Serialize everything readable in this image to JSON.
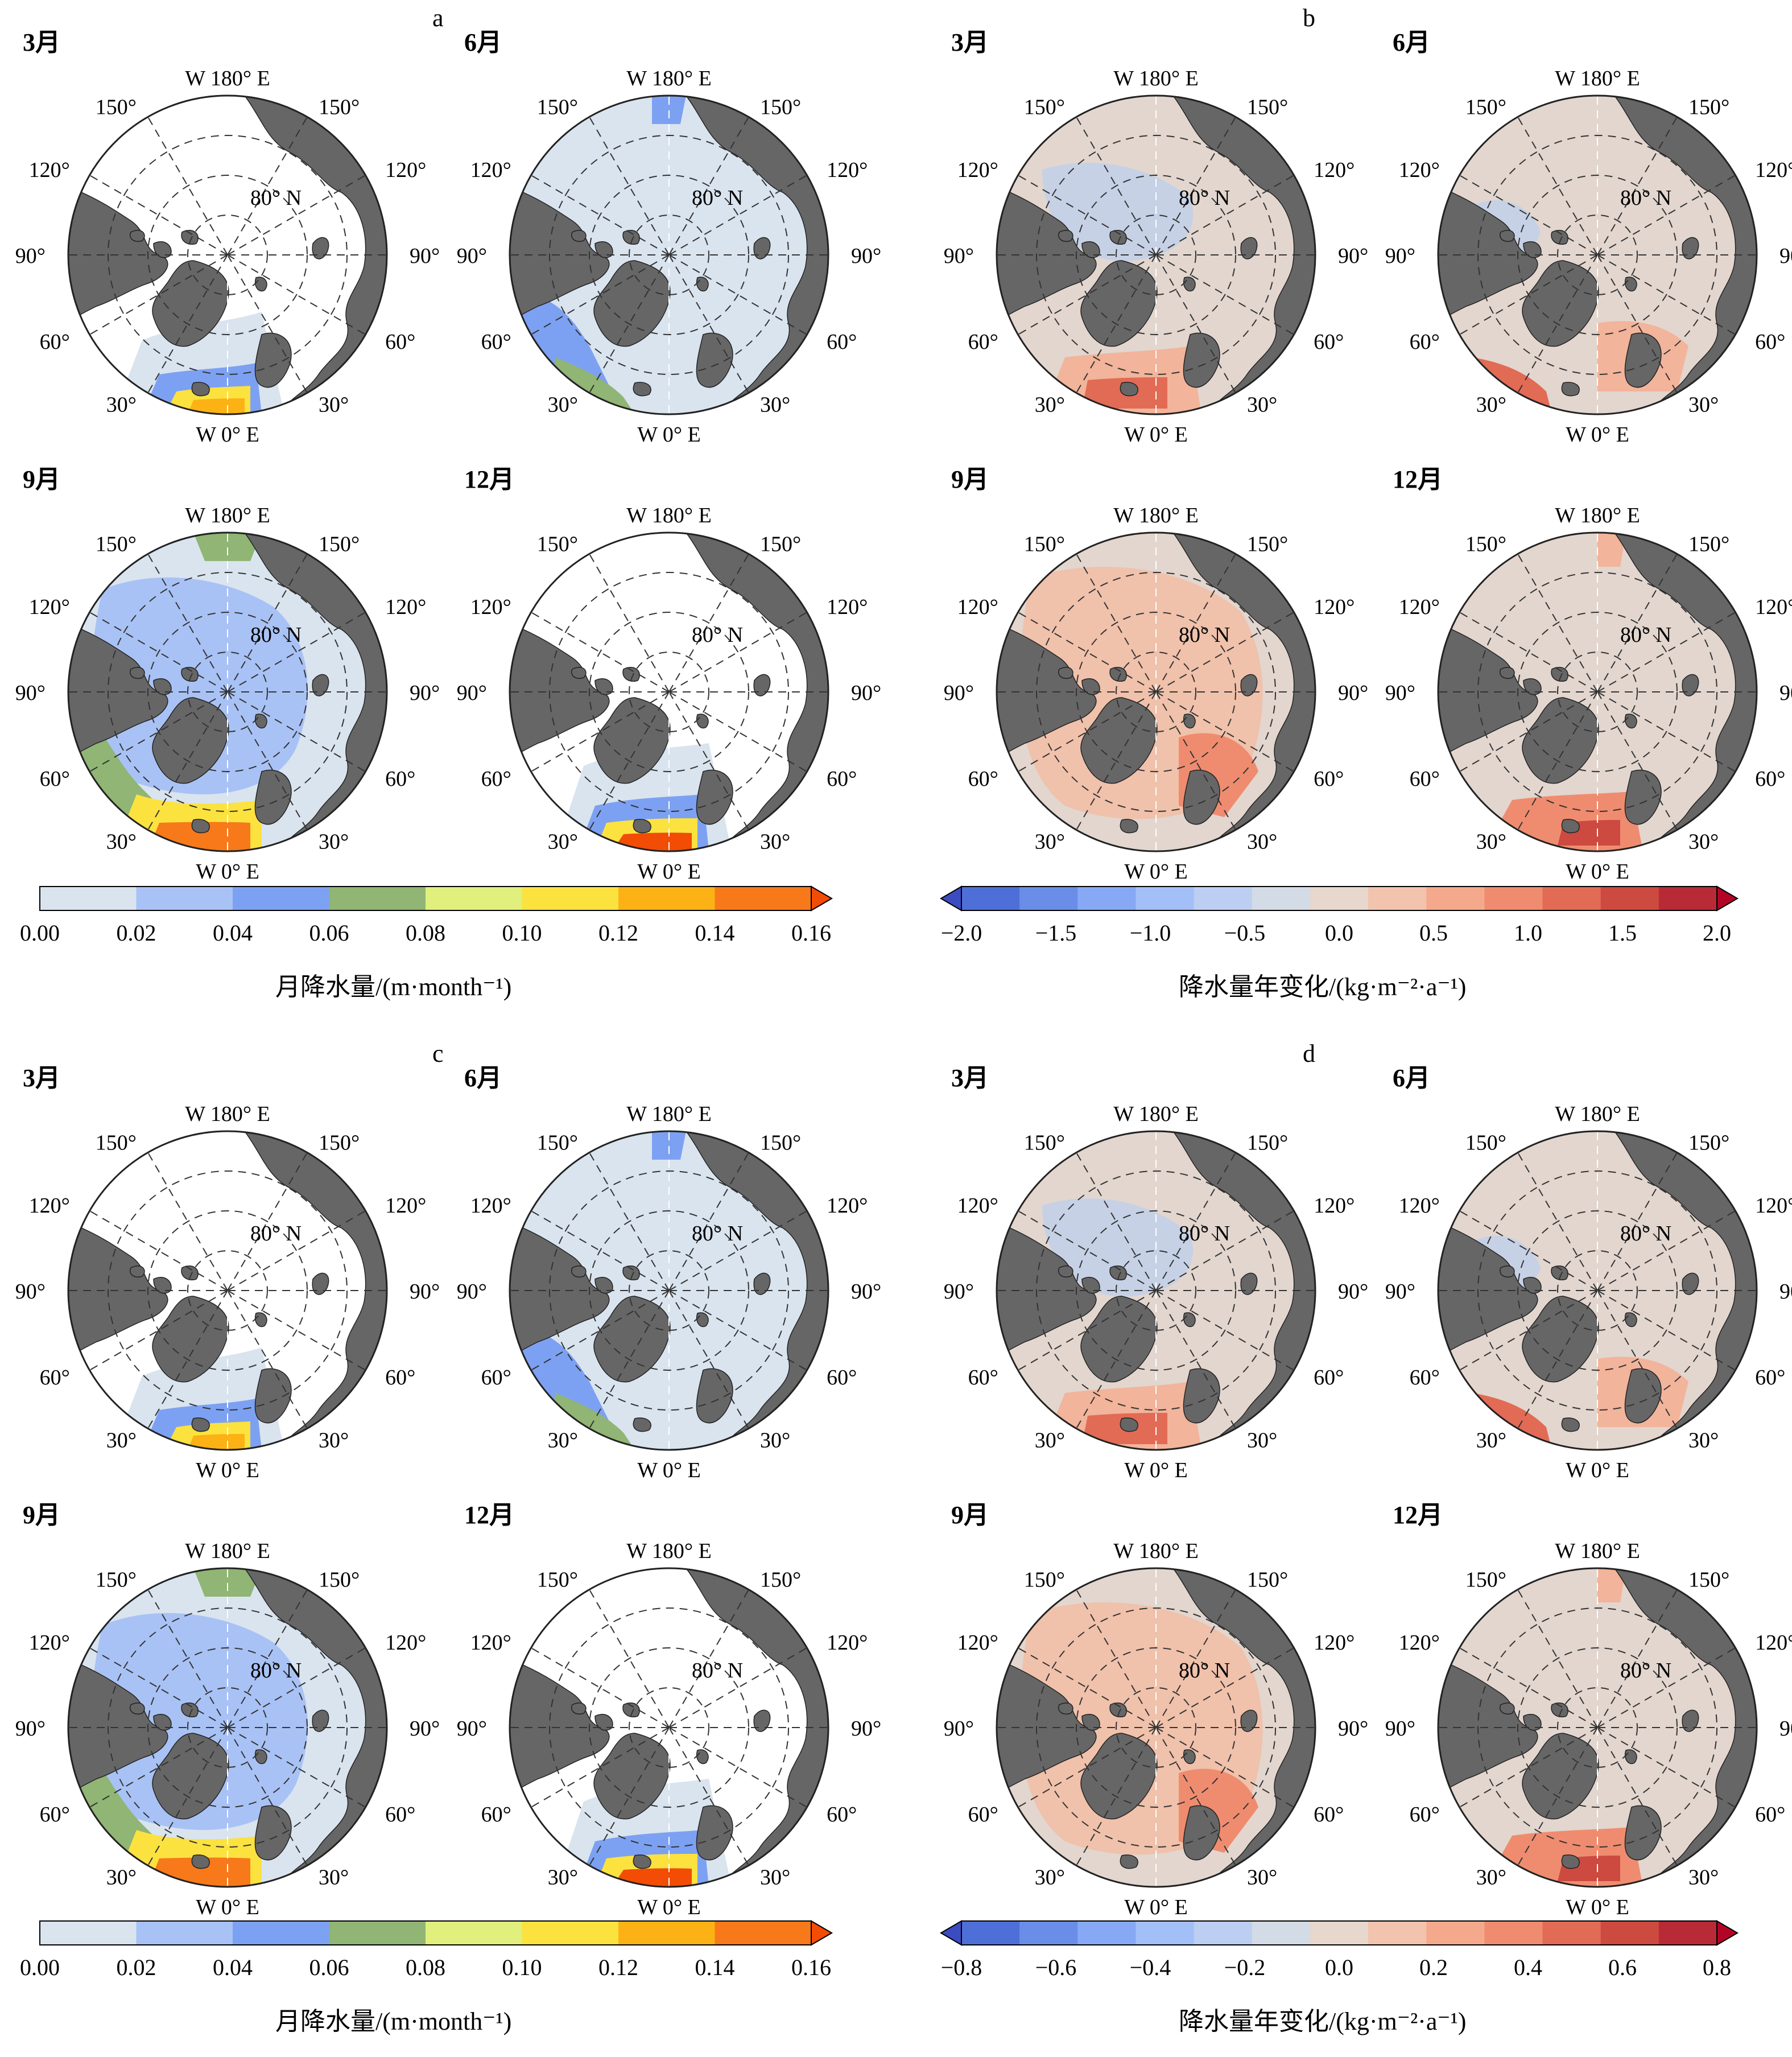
{
  "panels": [
    {
      "letter": "a",
      "maps": [
        {
          "month": "3月",
          "style": "precip-mar"
        },
        {
          "month": "6月",
          "style": "precip-jun"
        },
        {
          "month": "9月",
          "style": "precip-sep"
        },
        {
          "month": "12月",
          "style": "precip-dec"
        }
      ]
    },
    {
      "letter": "b",
      "maps": [
        {
          "month": "3月",
          "style": "trend-mar"
        },
        {
          "month": "6月",
          "style": "trend-jun"
        },
        {
          "month": "9月",
          "style": "trend-sep"
        },
        {
          "month": "12月",
          "style": "trend-dec"
        }
      ]
    },
    {
      "letter": "c",
      "maps": [
        {
          "month": "3月",
          "style": "precip-mar"
        },
        {
          "month": "6月",
          "style": "precip-jun"
        },
        {
          "month": "9月",
          "style": "precip-sep"
        },
        {
          "month": "12月",
          "style": "precip-dec"
        }
      ]
    },
    {
      "letter": "d",
      "maps": [
        {
          "month": "3月",
          "style": "trend-mar"
        },
        {
          "month": "6月",
          "style": "trend-jun"
        },
        {
          "month": "9月",
          "style": "trend-sep"
        },
        {
          "month": "12月",
          "style": "trend-dec"
        }
      ]
    }
  ],
  "map_labels": {
    "top": "W 180° E",
    "bottom": "W 0° E",
    "lat": "80° N",
    "left_lon": [
      "150°",
      "120°",
      "90°",
      "60°",
      "30°"
    ],
    "right_lon": [
      "150°",
      "120°",
      "90°",
      "60°",
      "30°"
    ]
  },
  "colorbars": [
    {
      "title": "月降水量/(m·month⁻¹)",
      "ticks": [
        "0.00",
        "0.02",
        "0.04",
        "0.06",
        "0.08",
        "0.10",
        "0.12",
        "0.14",
        "0.16"
      ],
      "colors": [
        "#d9e4ef",
        "#a9c2f5",
        "#7da1f2",
        "#90b574",
        "#e1ef7d",
        "#fbe23f",
        "#fcb214",
        "#f7791a",
        "#f24c05"
      ],
      "extend": "max"
    },
    {
      "title": "降水量年变化/(kg·m⁻²·a⁻¹)",
      "ticks": [
        "−2.0",
        "−1.5",
        "−1.0",
        "−0.5",
        "0.0",
        "0.5",
        "1.0",
        "1.5",
        "2.0"
      ],
      "colors": [
        "#3b4cc0",
        "#4f6fd8",
        "#6a8ee8",
        "#87a8f4",
        "#a3bff8",
        "#bccff3",
        "#d3dbe6",
        "#e7d7cd",
        "#f2c3ad",
        "#f5a98c",
        "#ef8c6f",
        "#e26b55",
        "#cd4a41",
        "#b82a36",
        "#b40426"
      ],
      "extend": "both"
    },
    {
      "title": "月降水量/(m·month⁻¹)",
      "ticks": [
        "0.00",
        "0.02",
        "0.04",
        "0.06",
        "0.08",
        "0.10",
        "0.12",
        "0.14",
        "0.16"
      ],
      "colors": [
        "#d9e4ef",
        "#a9c2f5",
        "#7da1f2",
        "#90b574",
        "#e1ef7d",
        "#fbe23f",
        "#fcb214",
        "#f7791a",
        "#f24c05"
      ],
      "extend": "max"
    },
    {
      "title": "降水量年变化/(kg·m⁻²·a⁻¹)",
      "ticks": [
        "−0.8",
        "−0.6",
        "−0.4",
        "−0.2",
        "0.0",
        "0.2",
        "0.4",
        "0.6",
        "0.8"
      ],
      "colors": [
        "#3b4cc0",
        "#4f6fd8",
        "#6a8ee8",
        "#87a8f4",
        "#a3bff8",
        "#bccff3",
        "#d3dbe6",
        "#e7d7cd",
        "#f2c3ad",
        "#f5a98c",
        "#ef8c6f",
        "#e26b55",
        "#cd4a41",
        "#b82a36",
        "#b40426"
      ],
      "extend": "both"
    }
  ],
  "colors": {
    "land": "#666666",
    "ocean_precip_low": "#d9e4ef",
    "ocean_trend_neutral": "#d9d0cc"
  }
}
